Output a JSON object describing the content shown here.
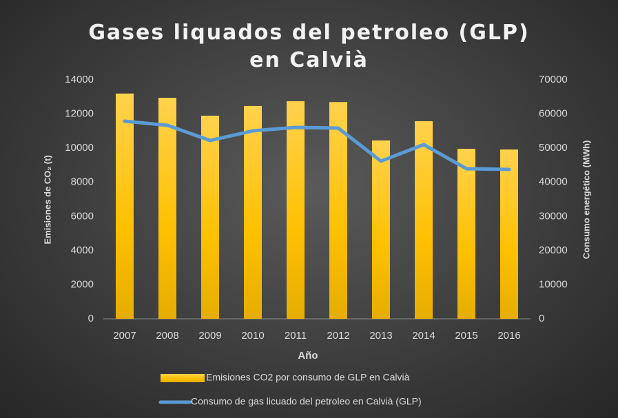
{
  "chart_data": {
    "type": "bar_line",
    "title": "Gases liquados del petroleo (GLP) en Calvià",
    "x_label": "Año",
    "y_label": "Emisiones de CO₂ (t)",
    "y2_label": "Consumo energético (MWh)",
    "categories": [
      "2007",
      "2008",
      "2009",
      "2010",
      "2011",
      "2012",
      "2013",
      "2014",
      "2015",
      "2016"
    ],
    "series": [
      {
        "name": "Emisiones CO2 por consumo de GLP en Calvià",
        "type": "bar",
        "color": "#ffc000",
        "values": [
          13200,
          12950,
          11900,
          12470,
          12750,
          12700,
          10450,
          11580,
          9960,
          9920
        ]
      },
      {
        "name": "Consumo de gas licuado del petroleo en Calvià (GLP)",
        "type": "line",
        "color": "#5b9bd5",
        "axis": "y2",
        "values": [
          57900,
          56700,
          52250,
          55070,
          56080,
          55880,
          46200,
          51040,
          43980,
          43770
        ]
      }
    ],
    "ylim": [
      0,
      14000
    ],
    "yticks": [
      0,
      2000,
      4000,
      6000,
      8000,
      10000,
      12000,
      14000
    ],
    "y2lim": [
      0,
      70000
    ],
    "y2ticks": [
      0,
      10000,
      20000,
      30000,
      40000,
      50000,
      60000,
      70000
    ],
    "grid": false,
    "legend": "bottom"
  }
}
